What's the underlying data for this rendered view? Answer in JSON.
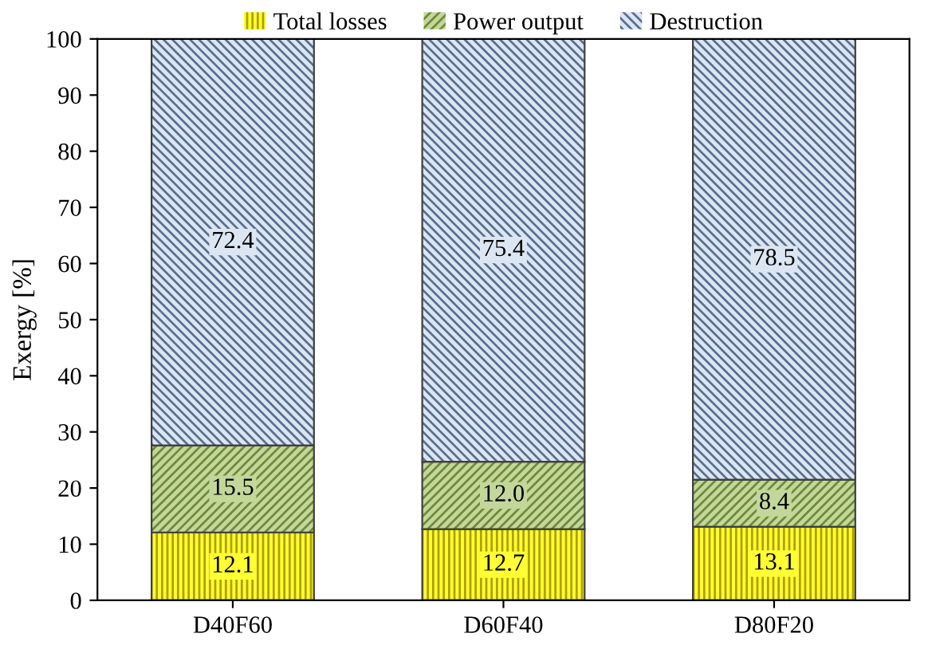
{
  "chart_data": {
    "type": "bar",
    "stacked": true,
    "ylabel": "Exergy [%]",
    "categories": [
      "D40F60",
      "D60F40",
      "D80F20"
    ],
    "series": [
      {
        "name": "Total losses",
        "color": "#ffff33",
        "values": [
          12.1,
          12.7,
          13.1
        ],
        "value_labels": [
          "12.1",
          "12.7",
          "13.1"
        ]
      },
      {
        "name": "Power output",
        "color": "#c4d79b",
        "values": [
          15.5,
          12.0,
          8.4
        ],
        "value_labels": [
          "15.5",
          "12.0",
          "8.4"
        ]
      },
      {
        "name": "Destruction",
        "color": "#dce6f2",
        "values": [
          72.4,
          75.4,
          78.5
        ],
        "value_labels": [
          "72.4",
          "75.4",
          "78.5"
        ]
      }
    ],
    "ylim": [
      0,
      100
    ],
    "yticks": [
      0,
      10,
      20,
      30,
      40,
      50,
      60,
      70,
      80,
      90,
      100
    ],
    "grid": false,
    "legend": "top"
  }
}
